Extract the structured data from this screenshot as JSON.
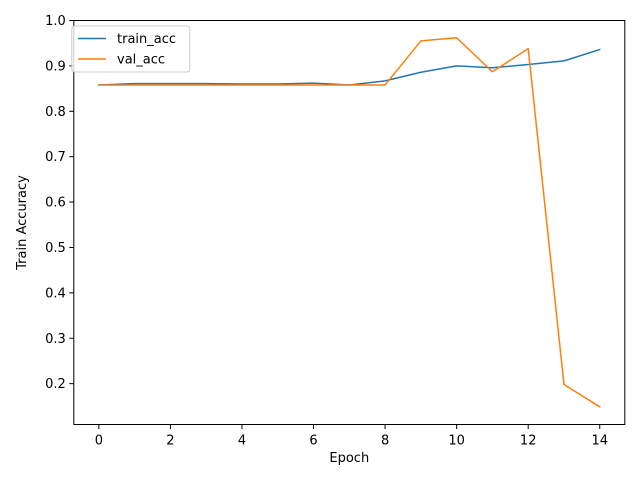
{
  "chart_data": {
    "type": "line",
    "xlabel": "Epoch",
    "ylabel": "Train Accuracy",
    "xlim": [
      -0.7,
      14.7
    ],
    "ylim": [
      0.11,
      1.0
    ],
    "xticks": [
      0,
      2,
      4,
      6,
      8,
      10,
      12,
      14
    ],
    "xtick_labels": [
      "0",
      "2",
      "4",
      "6",
      "8",
      "10",
      "12",
      "14"
    ],
    "yticks": [
      0.2,
      0.3,
      0.4,
      0.5,
      0.6,
      0.7,
      0.8,
      0.9,
      1.0
    ],
    "ytick_labels": [
      "0.2",
      "0.3",
      "0.4",
      "0.5",
      "0.6",
      "0.7",
      "0.8",
      "0.9",
      "1.0"
    ],
    "grid": false,
    "legend_position": "top-left",
    "x": [
      0,
      1,
      2,
      3,
      4,
      5,
      6,
      7,
      8,
      9,
      10,
      11,
      12,
      13,
      14
    ],
    "series": [
      {
        "name": "train_acc",
        "color": "#1f77b4",
        "values": [
          0.858,
          0.861,
          0.861,
          0.861,
          0.86,
          0.86,
          0.862,
          0.858,
          0.867,
          0.886,
          0.9,
          0.896,
          0.903,
          0.911,
          0.936
        ]
      },
      {
        "name": "val_acc",
        "color": "#ff7f0e",
        "values": [
          0.858,
          0.858,
          0.858,
          0.858,
          0.858,
          0.858,
          0.858,
          0.858,
          0.858,
          0.955,
          0.962,
          0.887,
          0.938,
          0.198,
          0.149
        ]
      }
    ]
  }
}
